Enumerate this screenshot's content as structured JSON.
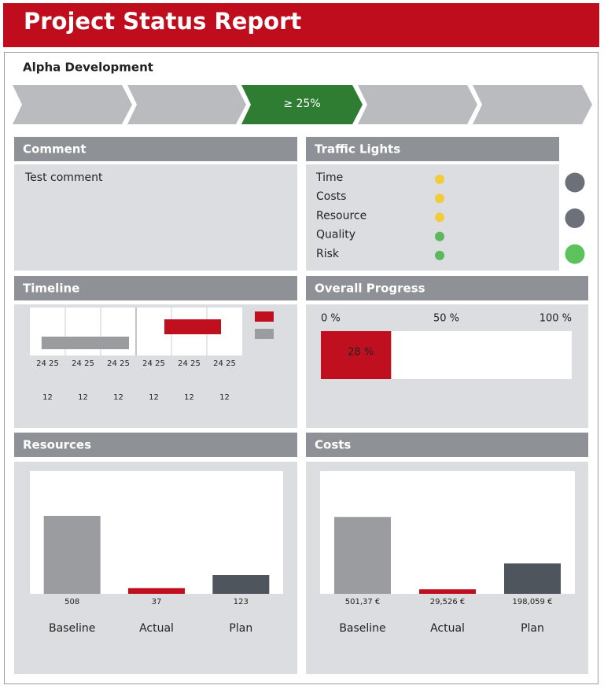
{
  "header": {
    "title": "Project Status Report"
  },
  "project": "Alpha Development",
  "phase": {
    "label": "≥ 25%",
    "color": "#2e7d32"
  },
  "comment": {
    "title": "Comment",
    "text": "Test comment"
  },
  "traffic_lights": {
    "title": "Traffic Lights",
    "items": [
      {
        "label": "Time",
        "color": "#f2cc38"
      },
      {
        "label": "Costs",
        "color": "#f2cc38"
      },
      {
        "label": "Resource",
        "color": "#f2cc38"
      },
      {
        "label": "Quality",
        "color": "#5cb85c"
      },
      {
        "label": "Risk",
        "color": "#5cb85c"
      }
    ],
    "summary": [
      "#6b7079",
      "#6b7079",
      "#5cc25c"
    ]
  },
  "timeline": {
    "title": "Timeline",
    "columns": [
      {
        "top": "24 25",
        "bottom": "12"
      },
      {
        "top": "24 25",
        "bottom": "12"
      },
      {
        "top": "24 25",
        "bottom": "12"
      },
      {
        "top": "24 25",
        "bottom": "12"
      },
      {
        "top": "24 25",
        "bottom": "12"
      },
      {
        "top": "24 25",
        "bottom": "12"
      }
    ],
    "xlim": [
      0,
      6
    ],
    "bars": [
      {
        "color": "#c0101f",
        "start": 3.8,
        "end": 5.4
      },
      {
        "color": "#9a9c9f",
        "start": 0.33,
        "end": 2.8
      }
    ]
  },
  "overall_progress": {
    "title": "Overall Progress",
    "chart_data": {
      "type": "progress",
      "value": 28,
      "value_label": "28 %",
      "color": "#c0101f",
      "xlim": [
        0,
        100
      ],
      "xticks": [
        {
          "value": 0,
          "label": "0 %"
        },
        {
          "value": 50,
          "label": "50 %"
        },
        {
          "value": 100,
          "label": "100 %"
        }
      ]
    }
  },
  "resources": {
    "title": "Resources",
    "chart_data": {
      "type": "bar",
      "categories": [
        "Baseline",
        "Actual",
        "Plan"
      ],
      "values": [
        508,
        37,
        123
      ],
      "colors": [
        "#9a9c9f",
        "#c0101f",
        "#4e555c"
      ],
      "ylim": [
        0,
        800
      ]
    }
  },
  "costs": {
    "title": "Costs",
    "chart_data": {
      "type": "bar",
      "categories": [
        "Baseline",
        "Actual",
        "Plan"
      ],
      "values": [
        501.37,
        29.526,
        198.059
      ],
      "value_labels": [
        "501,37 €",
        "29,526 €",
        "198,059 €"
      ],
      "colors": [
        "#9a9c9f",
        "#c0101f",
        "#4e555c"
      ],
      "ylim": [
        0,
        800
      ]
    }
  }
}
